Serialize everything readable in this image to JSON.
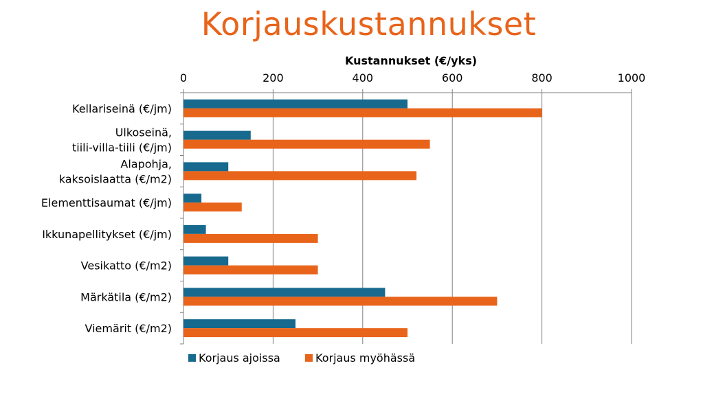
{
  "slide": {
    "title": "Korjauskustannukset"
  },
  "chart_data": {
    "type": "bar",
    "orientation": "horizontal",
    "title": "",
    "xlabel": "Kustannukset (€/yks)",
    "ylabel": "",
    "xlim": [
      0,
      1000
    ],
    "x_axis_position": "top",
    "ticks": [
      0,
      200,
      400,
      600,
      800,
      1000
    ],
    "grid": "vertical",
    "legend_position": "bottom-left",
    "categories": [
      [
        "Kellariseinä (€/jm)"
      ],
      [
        "Ulkoseinä,",
        "tiili-villa-tiili (€/jm)"
      ],
      [
        "Alapohja,",
        "kaksoislaatta (€/m2)"
      ],
      [
        "Elementtisaumat (€/jm)"
      ],
      [
        "Ikkunapellitykset (€/jm)"
      ],
      [
        "Vesikatto  (€/m2)"
      ],
      [
        "Märkätila (€/m2)"
      ],
      [
        "Viemärit (€/m2)"
      ]
    ],
    "series": [
      {
        "name": "Korjaus ajoissa",
        "color": "#17698E",
        "values": [
          500,
          150,
          100,
          40,
          50,
          100,
          450,
          250
        ]
      },
      {
        "name": "Korjaus myöhässä",
        "color": "#E8641B",
        "values": [
          800,
          550,
          520,
          130,
          300,
          300,
          700,
          500
        ]
      }
    ]
  }
}
